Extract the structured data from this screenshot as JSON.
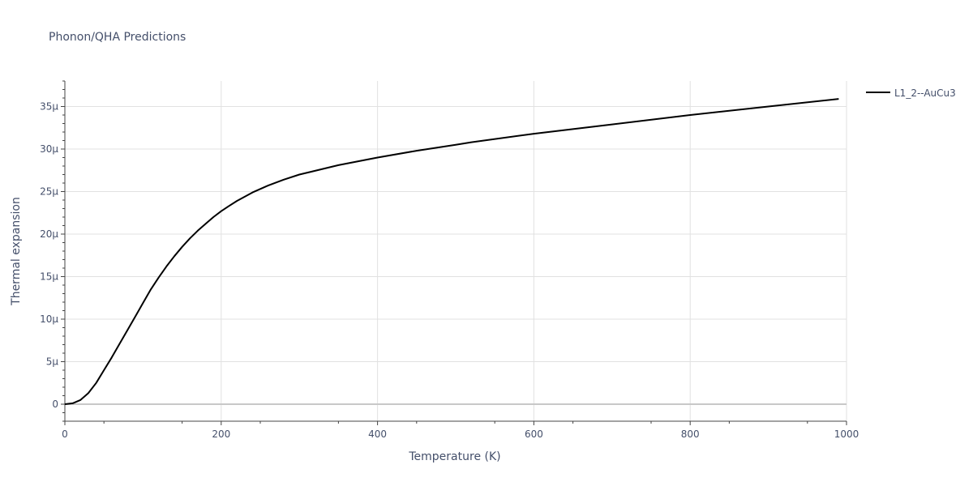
{
  "chart_data": {
    "type": "line",
    "title": "Phonon/QHA Predictions",
    "xlabel": "Temperature (K)",
    "ylabel": "Thermal expansion",
    "xlim": [
      0,
      1000
    ],
    "ylim": [
      -2,
      38
    ],
    "x_ticks": [
      0,
      200,
      400,
      600,
      800,
      1000
    ],
    "x_tick_labels": [
      "0",
      "200",
      "400",
      "600",
      "800",
      "1000"
    ],
    "y_ticks": [
      0,
      5,
      10,
      15,
      20,
      25,
      30,
      35
    ],
    "y_tick_labels": [
      "0",
      "5μ",
      "10μ",
      "15μ",
      "20μ",
      "25μ",
      "30μ",
      "35μ"
    ],
    "y_unit_note": "values in 1e-6 per K",
    "grid": true,
    "legend_position": "top-right",
    "series": [
      {
        "name": "L1_2--AuCu3",
        "color": "#000000",
        "x": [
          0,
          10,
          20,
          30,
          40,
          50,
          60,
          70,
          80,
          90,
          100,
          110,
          120,
          130,
          140,
          150,
          160,
          170,
          180,
          190,
          200,
          210,
          220,
          240,
          260,
          280,
          300,
          350,
          400,
          450,
          500,
          520,
          600,
          700,
          800,
          900,
          990
        ],
        "y": [
          0,
          0.1,
          0.5,
          1.3,
          2.5,
          4.0,
          5.5,
          7.1,
          8.7,
          10.3,
          11.9,
          13.5,
          14.9,
          16.2,
          17.4,
          18.5,
          19.5,
          20.4,
          21.2,
          22.0,
          22.7,
          23.3,
          23.9,
          24.9,
          25.7,
          26.4,
          27.0,
          28.1,
          29.0,
          29.8,
          30.5,
          30.8,
          31.8,
          32.9,
          34.0,
          35.0,
          35.9
        ]
      }
    ]
  }
}
